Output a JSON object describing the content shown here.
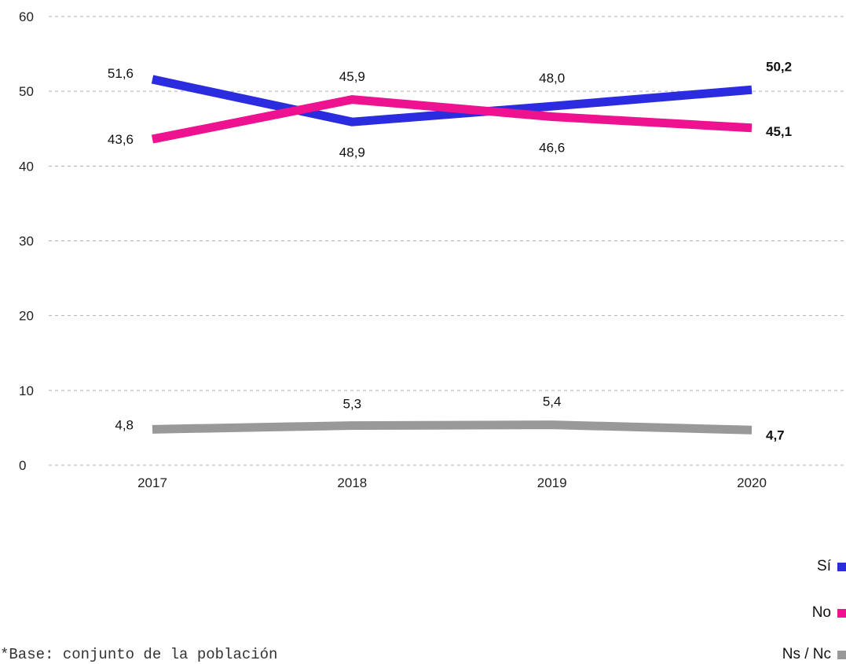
{
  "chart_data": {
    "type": "line",
    "categories": [
      "2017",
      "2018",
      "2019",
      "2020"
    ],
    "ylim": [
      0,
      60
    ],
    "yticks": [
      0,
      10,
      20,
      30,
      40,
      50,
      60
    ],
    "grid": true,
    "legend_position": "bottom-right",
    "series": [
      {
        "name": "Sí",
        "color": "#2b2be0",
        "values": [
          51.6,
          45.9,
          48.0,
          50.2
        ],
        "labels": [
          "51,6",
          "45,9",
          "48,0",
          "50,2"
        ]
      },
      {
        "name": "No",
        "color": "#ee1190",
        "values": [
          43.6,
          48.9,
          46.6,
          45.1
        ],
        "labels": [
          "43,6",
          "48,9",
          "46,6",
          "45,1"
        ]
      },
      {
        "name": "Ns / Nc",
        "color": "#999999",
        "values": [
          4.8,
          5.3,
          5.4,
          4.7
        ],
        "labels": [
          "4,8",
          "5,3",
          "5,4",
          "4,7"
        ]
      }
    ]
  },
  "legend": {
    "items": [
      {
        "label": "Sí",
        "color": "#2b2be0"
      },
      {
        "label": "No",
        "color": "#ee1190"
      },
      {
        "label": "Ns / Nc",
        "color": "#999999"
      }
    ]
  },
  "footnote": "*Base: conjunto de la población"
}
